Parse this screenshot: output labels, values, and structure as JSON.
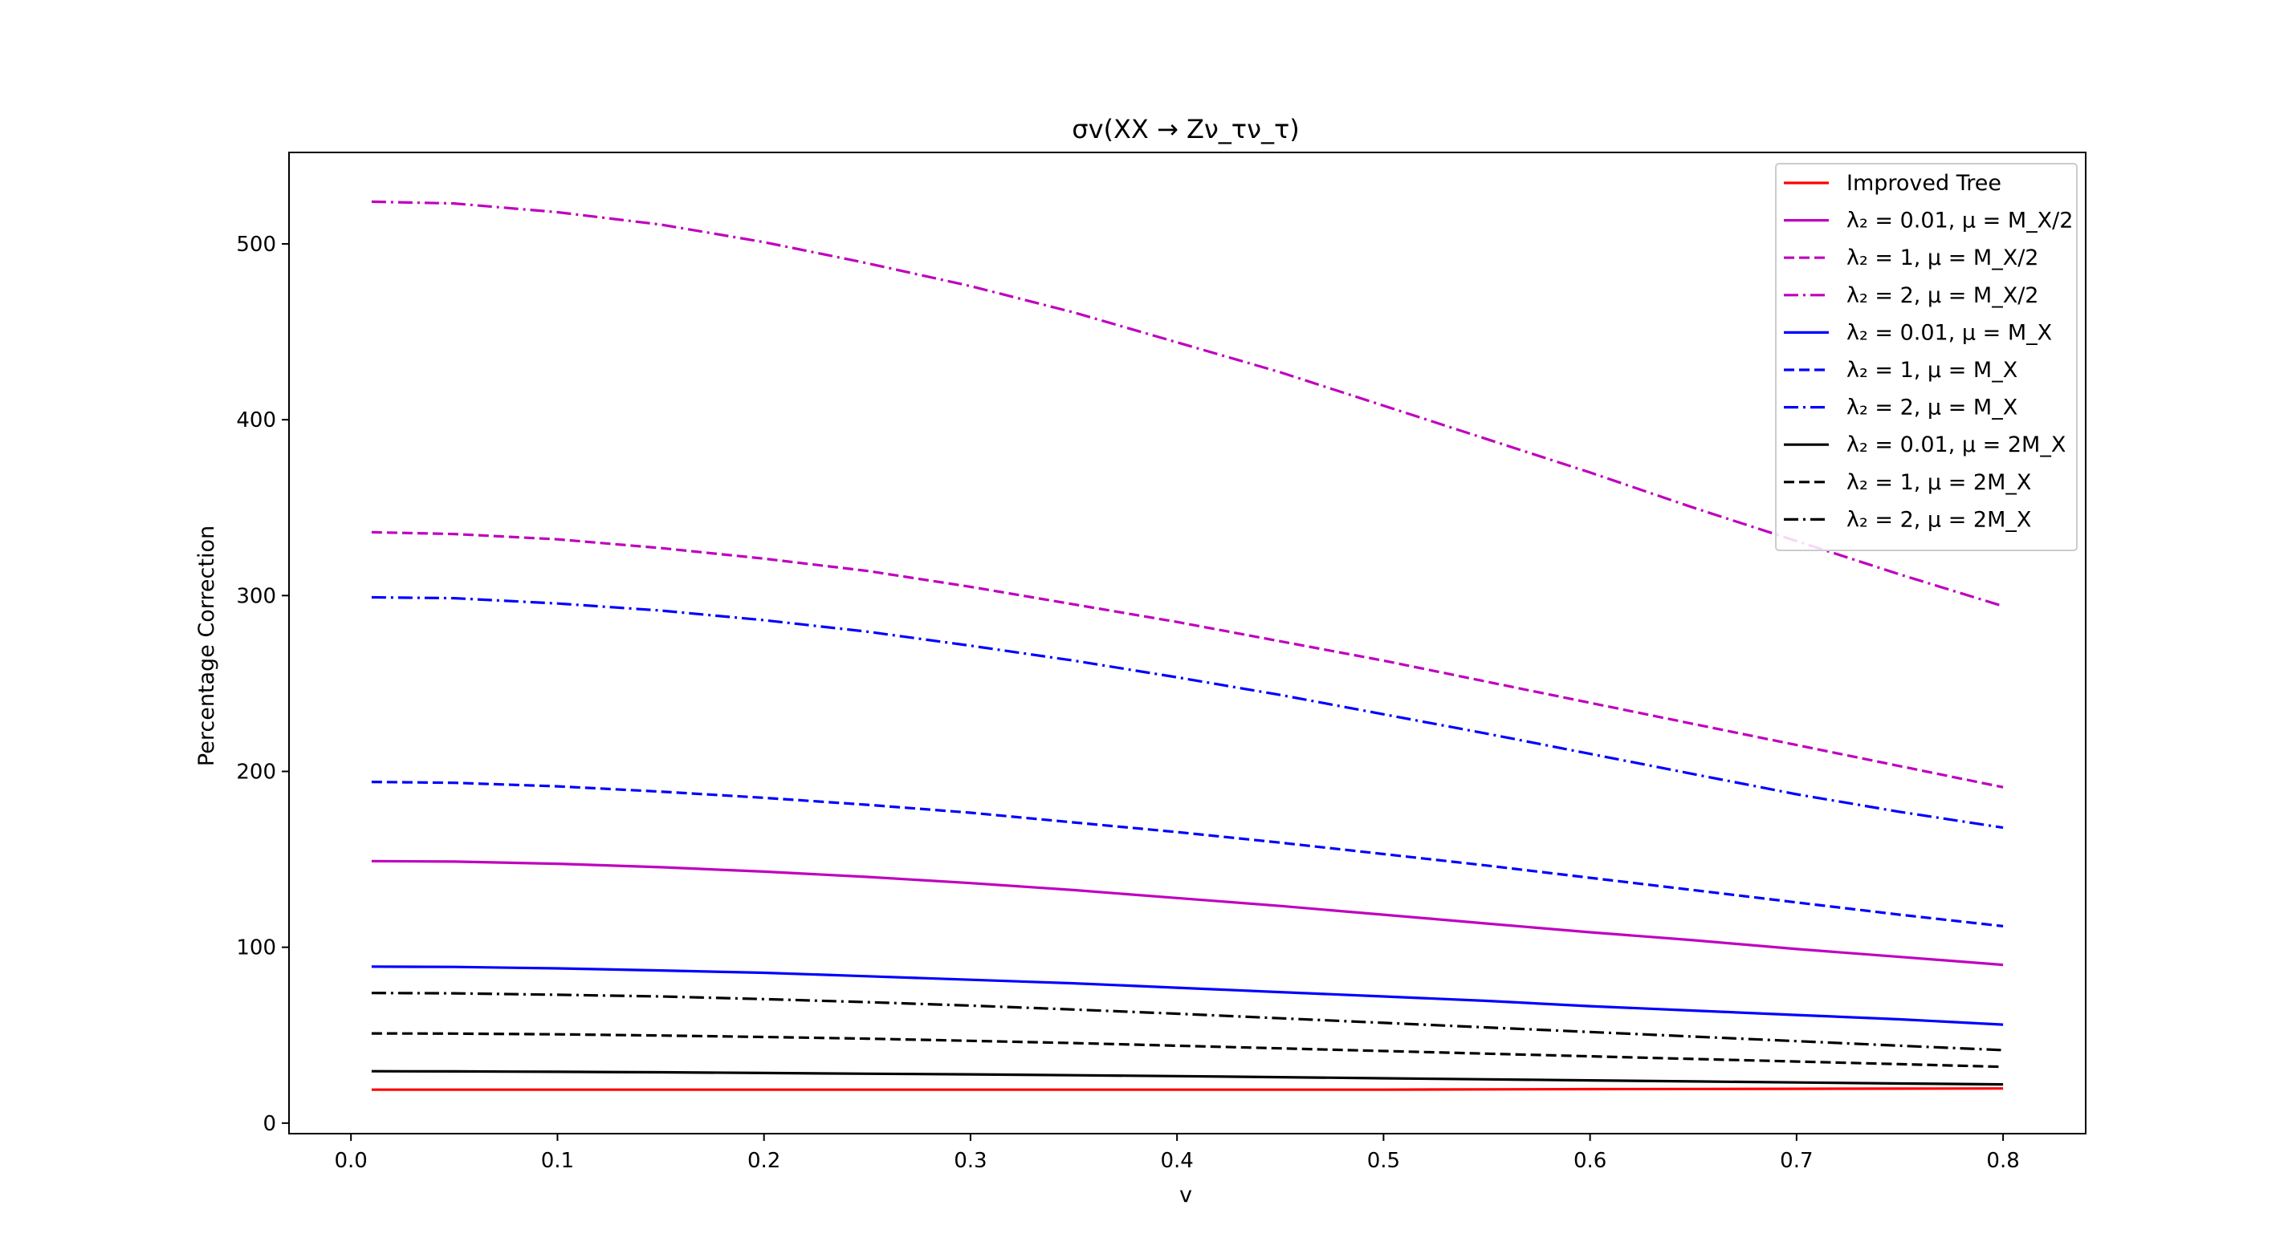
{
  "chart_data": {
    "type": "line",
    "title": "σv(XX → Zν_τν_τ)",
    "xlabel": "v",
    "ylabel": "Percentage Correction",
    "xlim": [
      -0.03,
      0.84
    ],
    "ylim": [
      -6,
      552
    ],
    "xticks": [
      "0.0",
      "0.1",
      "0.2",
      "0.3",
      "0.4",
      "0.5",
      "0.6",
      "0.7",
      "0.8"
    ],
    "yticks": [
      "0",
      "100",
      "200",
      "300",
      "400",
      "500"
    ],
    "legend_position": "top-right",
    "grid": false,
    "x": [
      0.01,
      0.05,
      0.1,
      0.15,
      0.2,
      0.25,
      0.3,
      0.35,
      0.4,
      0.45,
      0.5,
      0.55,
      0.6,
      0.65,
      0.7,
      0.75,
      0.8
    ],
    "series": [
      {
        "name": "Improved Tree",
        "color": "#ff0000",
        "dash": "solid",
        "values": [
          19,
          19,
          19,
          19,
          19,
          19,
          19,
          19,
          19,
          19,
          19,
          19.2,
          19.3,
          19.4,
          19.5,
          19.6,
          19.7
        ]
      },
      {
        "name": "λ₂ = 0.01, μ = M_X/2",
        "color": "#bf00bf",
        "dash": "solid",
        "values": [
          149,
          148.7,
          147.5,
          145.5,
          143,
          140,
          136.5,
          132.5,
          128,
          123.5,
          118.5,
          113.5,
          108.5,
          104,
          99,
          94.5,
          90
        ]
      },
      {
        "name": "λ₂ = 1, μ = M_X/2",
        "color": "#bf00bf",
        "dash": "dashed",
        "values": [
          336,
          335,
          332,
          327,
          321,
          314,
          305,
          295,
          285,
          274,
          263,
          251,
          239,
          227,
          215,
          203,
          191
        ]
      },
      {
        "name": "λ₂ = 2, μ = M_X/2",
        "color": "#bf00bf",
        "dash": "dashdot",
        "values": [
          524,
          523,
          518,
          511,
          501,
          489,
          476,
          461,
          444,
          427,
          408,
          389,
          370,
          350,
          331,
          312,
          294
        ]
      },
      {
        "name": "λ₂ = 0.01, μ = M_X",
        "color": "#0000ff",
        "dash": "solid",
        "values": [
          89,
          88.8,
          88,
          86.8,
          85.5,
          83.5,
          81.5,
          79.5,
          77,
          74.5,
          72,
          69.5,
          66.5,
          64,
          61.5,
          59,
          56
        ]
      },
      {
        "name": "λ₂ = 1, μ = M_X",
        "color": "#0000ff",
        "dash": "dashed",
        "values": [
          194,
          193.5,
          191.5,
          188.5,
          185,
          181,
          176.5,
          171,
          165.5,
          159.5,
          153,
          146.5,
          139.5,
          132.5,
          125.5,
          118.5,
          112
        ]
      },
      {
        "name": "λ₂ = 2, μ = M_X",
        "color": "#0000ff",
        "dash": "dashdot",
        "values": [
          299,
          298.5,
          295.5,
          291.5,
          286,
          279.5,
          271.5,
          263,
          253.5,
          243.5,
          232.5,
          221.5,
          210,
          198.5,
          187,
          177,
          168
        ]
      },
      {
        "name": "λ₂ = 0.01, μ = 2M_X",
        "color": "#000000",
        "dash": "solid",
        "values": [
          29.5,
          29.4,
          29.2,
          28.9,
          28.5,
          28.1,
          27.7,
          27.2,
          26.7,
          26.1,
          25.5,
          24.9,
          24.3,
          23.7,
          23.1,
          22.5,
          22
        ]
      },
      {
        "name": "λ₂ = 1, μ = 2M_X",
        "color": "#000000",
        "dash": "dashed",
        "values": [
          51,
          50.9,
          50.5,
          49.8,
          49,
          48,
          46.8,
          45.5,
          44,
          42.5,
          41,
          39.5,
          38,
          36.5,
          35,
          33.5,
          32
        ]
      },
      {
        "name": "λ₂ = 2, μ = 2M_X",
        "color": "#000000",
        "dash": "dashdot",
        "values": [
          74,
          73.8,
          73,
          72,
          70.5,
          68.8,
          66.8,
          64.6,
          62.2,
          59.6,
          57,
          54.4,
          51.8,
          49.2,
          46.6,
          44,
          41.5
        ]
      }
    ]
  }
}
